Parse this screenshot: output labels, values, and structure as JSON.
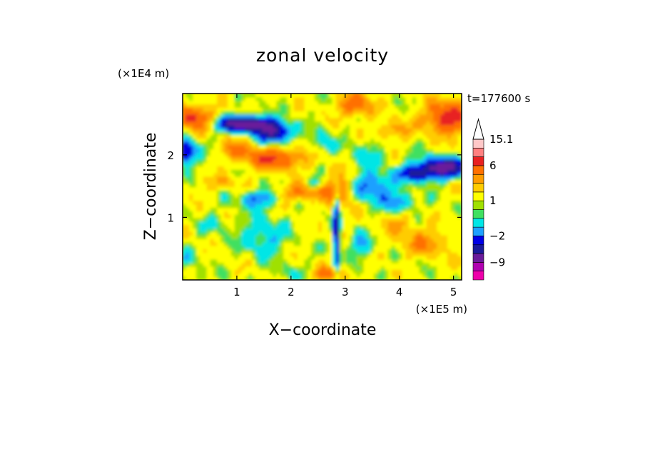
{
  "chart_data": {
    "type": "heatmap",
    "title": "zonal velocity",
    "xlabel": "X−coordinate",
    "ylabel": "Z−coordinate",
    "x_scale_label": "(×1E5 m)",
    "y_scale_label": "(×1E4 m)",
    "time_label": "t=177600 s",
    "xlim": [
      0,
      5.15
    ],
    "ylim": [
      0,
      2.98
    ],
    "x_ticks": [
      1,
      2,
      3,
      4,
      5
    ],
    "y_ticks": [
      1,
      2
    ],
    "x_tick_labels": [
      "1",
      "2",
      "3",
      "4",
      "5"
    ],
    "y_tick_labels": [
      "1",
      "2"
    ],
    "colorbar": {
      "labels": [
        {
          "value": 15.1,
          "text": "15.1"
        },
        {
          "value": 6,
          "text": "6"
        },
        {
          "value": 1,
          "text": "1"
        },
        {
          "value": -2,
          "text": "−2"
        },
        {
          "value": -9,
          "text": "−9"
        }
      ],
      "has_top_arrow": true,
      "levels": [
        {
          "min": -15,
          "max": -12,
          "color": "#ee00aa"
        },
        {
          "min": -12,
          "max": -9,
          "color": "#b000b0"
        },
        {
          "min": -9,
          "max": -6,
          "color": "#6a1a9a"
        },
        {
          "min": -6,
          "max": -4,
          "color": "#1a1a9a"
        },
        {
          "min": -4,
          "max": -2,
          "color": "#0000e6"
        },
        {
          "min": -2,
          "max": -1,
          "color": "#1ea0ff"
        },
        {
          "min": -1,
          "max": 0,
          "color": "#00e6e6"
        },
        {
          "min": 0,
          "max": 0.5,
          "color": "#40e060"
        },
        {
          "min": 0.5,
          "max": 1,
          "color": "#a0e000"
        },
        {
          "min": 1,
          "max": 2,
          "color": "#ffff00"
        },
        {
          "min": 2,
          "max": 3,
          "color": "#ffcc00"
        },
        {
          "min": 3,
          "max": 4,
          "color": "#ff9c00"
        },
        {
          "min": 4,
          "max": 6,
          "color": "#ff7000"
        },
        {
          "min": 6,
          "max": 9,
          "color": "#e82020"
        },
        {
          "min": 9,
          "max": 12,
          "color": "#ff8080"
        },
        {
          "min": 12,
          "max": 15.1,
          "color": "#ffc8c8"
        }
      ]
    }
  }
}
